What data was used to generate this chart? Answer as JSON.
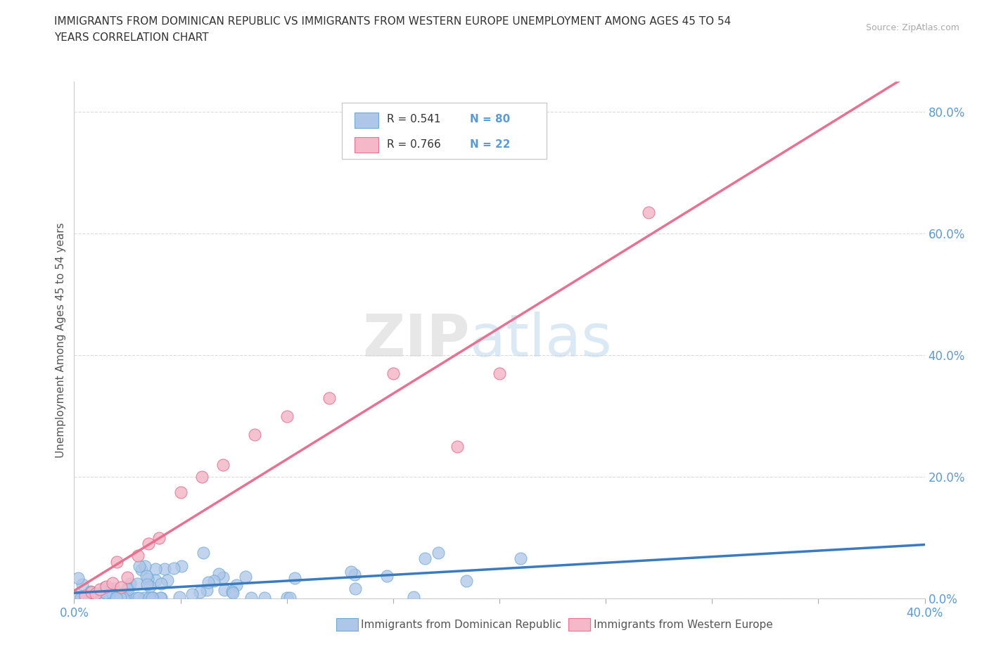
{
  "title_line1": "IMMIGRANTS FROM DOMINICAN REPUBLIC VS IMMIGRANTS FROM WESTERN EUROPE UNEMPLOYMENT AMONG AGES 45 TO 54",
  "title_line2": "YEARS CORRELATION CHART",
  "source": "Source: ZipAtlas.com",
  "ylabel": "Unemployment Among Ages 45 to 54 years",
  "xlim": [
    0.0,
    0.4
  ],
  "ylim": [
    0.0,
    0.85
  ],
  "x_ticks": [
    0.0,
    0.05,
    0.1,
    0.15,
    0.2,
    0.25,
    0.3,
    0.35,
    0.4
  ],
  "x_tick_labels": [
    "0.0%",
    "",
    "",
    "",
    "",
    "",
    "",
    "",
    "40.0%"
  ],
  "y_ticks": [
    0.0,
    0.2,
    0.4,
    0.6,
    0.8
  ],
  "y_tick_labels": [
    "0.0%",
    "20.0%",
    "40.0%",
    "60.0%",
    "80.0%"
  ],
  "series1_color": "#aec6e8",
  "series1_edge": "#6aaad4",
  "series2_color": "#f4b8c8",
  "series2_edge": "#e87090",
  "line1_color": "#3a7bbf",
  "line2_color": "#e87090",
  "R1": 0.541,
  "N1": 80,
  "R2": 0.766,
  "N2": 22,
  "legend_label1": "Immigrants from Dominican Republic",
  "legend_label2": "Immigrants from Western Europe",
  "watermark_zip": "ZIP",
  "watermark_atlas": "atlas",
  "background_color": "#ffffff",
  "grid_color": "#cccccc",
  "tick_color": "#5b9bd5"
}
